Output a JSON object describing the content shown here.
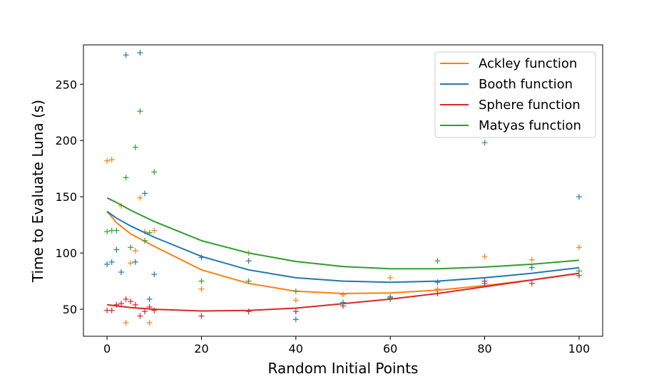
{
  "chart_data": {
    "type": "line",
    "title": "",
    "xlabel": "Random Initial Points",
    "ylabel": "Time to Evaluate Luna (s)",
    "xlim": [
      -5,
      105
    ],
    "ylim": [
      26,
      285
    ],
    "xticks": [
      0,
      20,
      40,
      60,
      80,
      100
    ],
    "yticks": [
      50,
      100,
      150,
      200,
      250
    ],
    "grid": false,
    "legend_position": "top-right",
    "series": [
      {
        "name": "Ackley function",
        "color": "#ff7f0e",
        "curve": {
          "x": [
            0,
            2,
            5,
            10,
            20,
            30,
            40,
            50,
            60,
            70,
            80,
            90,
            100
          ],
          "y": [
            137,
            127,
            117,
            106,
            85,
            73,
            66,
            64,
            64.5,
            67,
            71,
            76,
            82
          ]
        },
        "scatter": [
          [
            0,
            182
          ],
          [
            1,
            183
          ],
          [
            3,
            142
          ],
          [
            4,
            38
          ],
          [
            5,
            91
          ],
          [
            6,
            102
          ],
          [
            7,
            149
          ],
          [
            8,
            119
          ],
          [
            9,
            38
          ],
          [
            10,
            120
          ],
          [
            20,
            68
          ],
          [
            30,
            100
          ],
          [
            40,
            58
          ],
          [
            50,
            63
          ],
          [
            60,
            78
          ],
          [
            70,
            68
          ],
          [
            80,
            97
          ],
          [
            90,
            94
          ],
          [
            100,
            105
          ]
        ]
      },
      {
        "name": "Booth function",
        "color": "#1f77b4",
        "curve": {
          "x": [
            0,
            2,
            5,
            10,
            20,
            30,
            40,
            50,
            60,
            70,
            80,
            90,
            100
          ],
          "y": [
            137,
            131,
            124,
            114,
            97,
            85,
            78,
            75,
            74,
            75,
            78,
            82,
            87
          ]
        },
        "scatter": [
          [
            0,
            90
          ],
          [
            1,
            92
          ],
          [
            2,
            103
          ],
          [
            3,
            83
          ],
          [
            4,
            276
          ],
          [
            6,
            92
          ],
          [
            7,
            278
          ],
          [
            8,
            153
          ],
          [
            9,
            59
          ],
          [
            10,
            81
          ],
          [
            20,
            96
          ],
          [
            30,
            93
          ],
          [
            40,
            41
          ],
          [
            50,
            56
          ],
          [
            60,
            61
          ],
          [
            70,
            74
          ],
          [
            80,
            73
          ],
          [
            90,
            87
          ],
          [
            100,
            150
          ]
        ]
      },
      {
        "name": "Sphere function",
        "color": "#d62728",
        "curve": {
          "x": [
            0,
            2,
            5,
            10,
            20,
            30,
            40,
            50,
            60,
            70,
            80,
            90,
            100
          ],
          "y": [
            54,
            53,
            51.5,
            50,
            48.5,
            49,
            51,
            55,
            59,
            64,
            70,
            76,
            82
          ]
        },
        "scatter": [
          [
            0,
            49
          ],
          [
            1,
            49
          ],
          [
            2,
            54
          ],
          [
            3,
            55
          ],
          [
            4,
            59
          ],
          [
            5,
            57
          ],
          [
            6,
            54
          ],
          [
            7,
            44
          ],
          [
            8,
            48
          ],
          [
            9,
            52
          ],
          [
            10,
            49
          ],
          [
            20,
            44
          ],
          [
            30,
            48
          ],
          [
            40,
            48
          ],
          [
            50,
            53
          ],
          [
            60,
            59
          ],
          [
            70,
            64
          ],
          [
            80,
            75
          ],
          [
            90,
            73
          ],
          [
            100,
            80
          ]
        ]
      },
      {
        "name": "Matyas function",
        "color": "#2ca02c",
        "curve": {
          "x": [
            0,
            2,
            5,
            10,
            20,
            30,
            40,
            50,
            60,
            70,
            80,
            90,
            100
          ],
          "y": [
            149,
            145,
            138,
            128,
            111,
            100,
            92.5,
            88,
            86,
            86,
            87.5,
            90,
            93.5
          ]
        },
        "scatter": [
          [
            0,
            119
          ],
          [
            1,
            120
          ],
          [
            2,
            120
          ],
          [
            4,
            167
          ],
          [
            5,
            105
          ],
          [
            6,
            194
          ],
          [
            7,
            226
          ],
          [
            8,
            111
          ],
          [
            9,
            118
          ],
          [
            10,
            172
          ],
          [
            20,
            75
          ],
          [
            30,
            75
          ],
          [
            40,
            66
          ],
          [
            50,
            55
          ],
          [
            60,
            60
          ],
          [
            70,
            93
          ],
          [
            80,
            198
          ],
          [
            100,
            84
          ]
        ]
      }
    ]
  }
}
